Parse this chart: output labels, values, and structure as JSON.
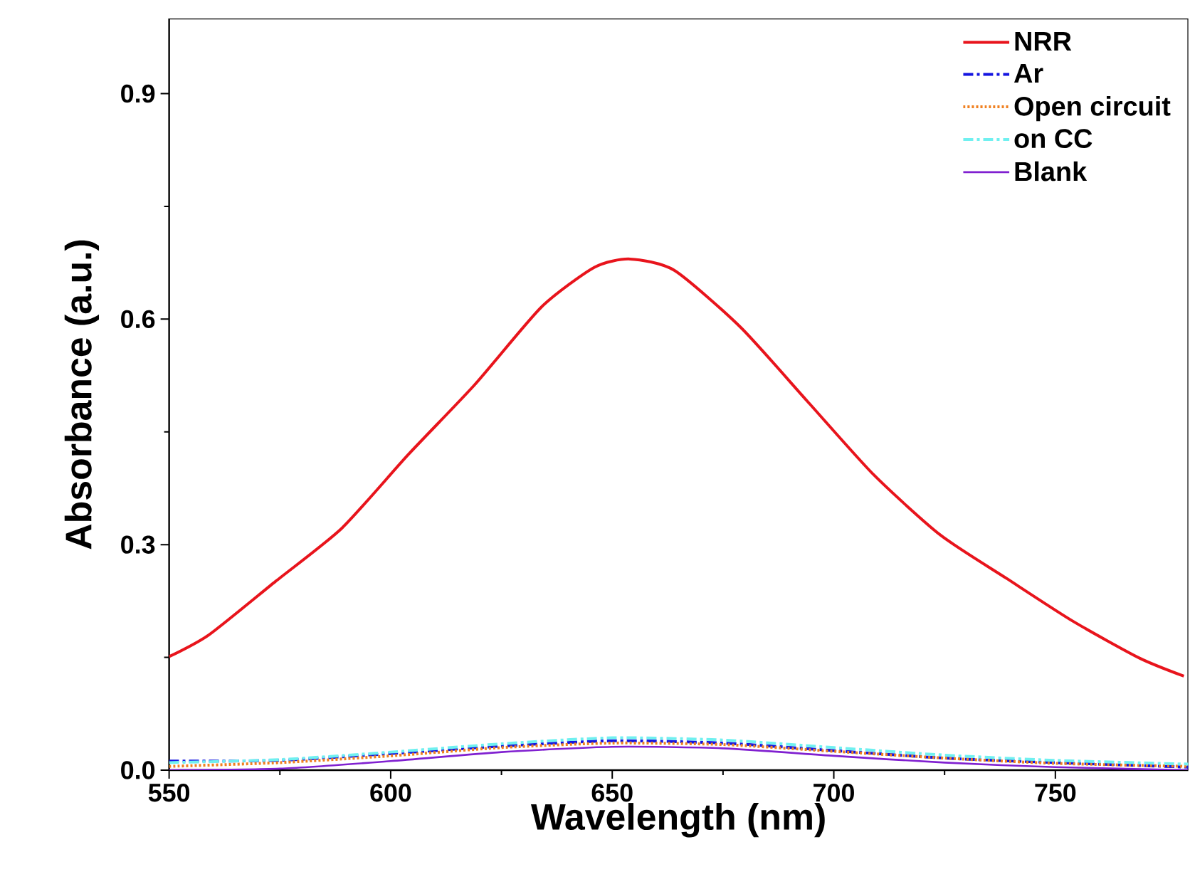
{
  "chart_data": {
    "type": "line",
    "xlabel": "Wavelength (nm)",
    "ylabel": "Absorbance (a.u.)",
    "xlim": [
      550,
      780
    ],
    "xticks": [
      550,
      600,
      650,
      700,
      750
    ],
    "ylim": [
      0,
      1.0
    ],
    "yticks": [
      {
        "value": 0,
        "label": "0.0"
      },
      {
        "value": 0.3,
        "label": "0.3"
      },
      {
        "value": 0.6,
        "label": "0.6"
      },
      {
        "value": 0.9,
        "label": "0.9"
      }
    ],
    "grid": false,
    "legend": "top right",
    "marker": "none",
    "series": [
      {
        "name": "NRR",
        "color": "#e8141c",
        "line_style": "solid",
        "x": [
          550,
          559,
          574,
          589,
          604,
          619,
          634,
          646,
          654,
          664,
          679,
          694,
          709,
          724,
          739,
          754,
          769,
          779
        ],
        "values": [
          0.151,
          0.18,
          0.251,
          0.322,
          0.42,
          0.513,
          0.616,
          0.669,
          0.68,
          0.665,
          0.589,
          0.491,
          0.393,
          0.313,
          0.255,
          0.198,
          0.149,
          0.125
        ]
      },
      {
        "name": "Ar",
        "color": "#1414e0",
        "line_style": "dashdot",
        "x": [
          550,
          575,
          600,
          625,
          650,
          675,
          700,
          725,
          750,
          780
        ],
        "values": [
          0.012,
          0.013,
          0.022,
          0.032,
          0.039,
          0.036,
          0.026,
          0.016,
          0.01,
          0.004
        ]
      },
      {
        "name": "Open circuit",
        "color": "#f08020",
        "line_style": "dotted",
        "x": [
          550,
          575,
          600,
          625,
          650,
          675,
          700,
          725,
          750,
          780
        ],
        "values": [
          0.005,
          0.01,
          0.019,
          0.03,
          0.036,
          0.034,
          0.025,
          0.016,
          0.009,
          0.005
        ]
      },
      {
        "name": "on CC",
        "color": "#70f0f0",
        "line_style": "dashdot",
        "x": [
          550,
          575,
          600,
          625,
          650,
          675,
          700,
          725,
          750,
          780
        ],
        "values": [
          0.01,
          0.014,
          0.024,
          0.035,
          0.043,
          0.04,
          0.03,
          0.02,
          0.013,
          0.008
        ]
      },
      {
        "name": "Blank",
        "color": "#8020d0",
        "line_style": "solid",
        "x": [
          550,
          575,
          600,
          625,
          650,
          675,
          700,
          725,
          750,
          780
        ],
        "values": [
          0.0,
          0.002,
          0.012,
          0.024,
          0.031,
          0.029,
          0.019,
          0.01,
          0.004,
          0.0
        ]
      }
    ]
  }
}
